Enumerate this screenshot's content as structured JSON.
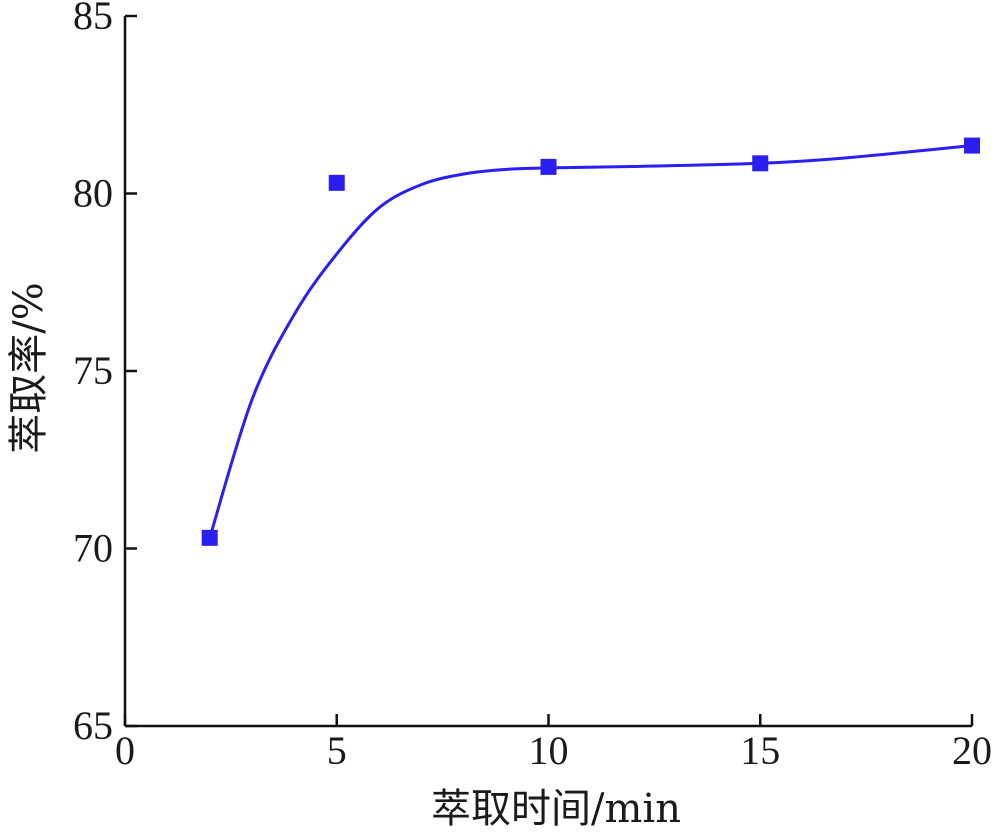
{
  "chart_data": {
    "type": "scatter",
    "title": "",
    "xlabel": "萃取时间/min",
    "ylabel": "萃取率/%",
    "xlim": [
      0,
      20
    ],
    "ylim": [
      65,
      85
    ],
    "x_ticks": [
      "0",
      "5",
      "10",
      "15",
      "20"
    ],
    "y_ticks": [
      "65",
      "70",
      "75",
      "80",
      "85"
    ],
    "grid": false,
    "legend": "none",
    "series": [
      {
        "marker": "square",
        "color": "#2a1ef0",
        "x": [
          2,
          5,
          10,
          15,
          20
        ],
        "y": [
          70.3,
          80.3,
          80.75,
          80.85,
          81.35
        ]
      }
    ],
    "fit_curve": {
      "color": "#2a1ef0",
      "x": [
        2,
        3,
        4,
        5,
        6,
        7,
        8,
        9,
        10,
        12,
        15,
        17,
        20
      ],
      "y": [
        70.3,
        74.2,
        76.6,
        78.3,
        79.6,
        80.25,
        80.55,
        80.68,
        80.72,
        80.76,
        80.85,
        81.0,
        81.35
      ]
    }
  }
}
